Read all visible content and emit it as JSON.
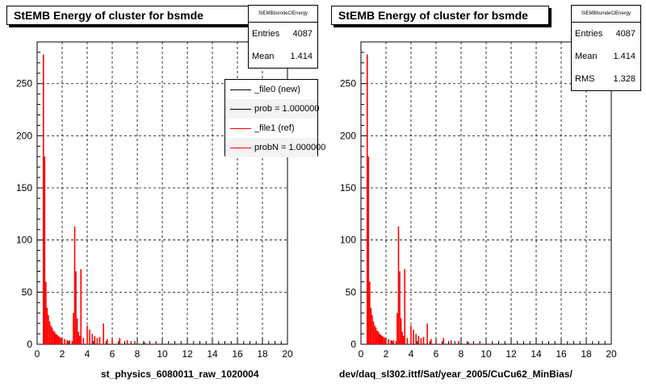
{
  "chart_data": [
    {
      "type": "bar",
      "title": "StEMB Energy of cluster for bsmde",
      "xlabel": "st_physics_6080011_raw_1020004",
      "ylabel": "",
      "xlim": [
        0,
        20
      ],
      "ylim": [
        0,
        290
      ],
      "x_ticks": [
        "0",
        "2",
        "4",
        "6",
        "8",
        "10",
        "12",
        "14",
        "16",
        "18",
        "20"
      ],
      "y_ticks": [
        "0",
        "50",
        "100",
        "150",
        "200",
        "250"
      ],
      "grid": true,
      "stats": {
        "name": "StEMBbsmdeClEnergy",
        "entries_label": "Entries",
        "entries": "4087",
        "mean_label": "Mean",
        "mean": "1.414"
      },
      "legend": {
        "placement": "top-right",
        "entries": [
          {
            "label": "_file0 (new)",
            "color": "#000000"
          },
          {
            "label": "prob = 1.000000",
            "color": "#000000"
          },
          {
            "label": "_file1 (ref)",
            "color": "#ff0000"
          },
          {
            "label": "probN = 1.000000",
            "color": "#ff0000"
          }
        ]
      },
      "series": [
        {
          "color": "#ff0000",
          "x": [
            0.5,
            0.6,
            0.7,
            0.8,
            0.9,
            1.0,
            1.1,
            1.2,
            1.3,
            1.4,
            1.5,
            1.6,
            1.7,
            1.8,
            1.9,
            2.0,
            2.2,
            2.4,
            2.6,
            2.8,
            2.9,
            3.0,
            3.1,
            3.2,
            3.3,
            3.4,
            3.5,
            3.7,
            4.0,
            4.2,
            4.4,
            4.6,
            4.8,
            5.0,
            5.3,
            5.6,
            6.0,
            6.6,
            7.2,
            7.8,
            8.6,
            9.5,
            10.5
          ],
          "values": [
            278,
            180,
            60,
            35,
            28,
            22,
            18,
            16,
            13,
            12,
            10,
            9,
            8,
            7,
            6,
            6,
            5,
            4,
            4,
            3,
            30,
            113,
            70,
            25,
            12,
            8,
            72,
            6,
            18,
            14,
            10,
            8,
            6,
            7,
            20,
            5,
            4,
            6,
            4,
            3,
            2,
            2,
            1
          ]
        }
      ]
    },
    {
      "type": "bar",
      "title": "StEMB Energy of cluster for bsmde",
      "xlabel": "dev/daq_sl302.ittf/Sat/year_2005/CuCu62_MinBias/",
      "ylabel": "",
      "xlim": [
        0,
        20
      ],
      "ylim": [
        0,
        290
      ],
      "x_ticks": [
        "0",
        "2",
        "4",
        "6",
        "8",
        "10",
        "12",
        "14",
        "16",
        "18",
        "20"
      ],
      "y_ticks": [
        "0",
        "50",
        "100",
        "150",
        "200",
        "250"
      ],
      "grid": true,
      "stats": {
        "name": "StEMBbsmdeClEnergy",
        "entries_label": "Entries",
        "entries": "4087",
        "mean_label": "Mean",
        "mean": "1.414",
        "rms_label": "RMS",
        "rms": "1.328"
      },
      "series": [
        {
          "color": "#ff0000",
          "x": [
            0.5,
            0.6,
            0.7,
            0.8,
            0.9,
            1.0,
            1.1,
            1.2,
            1.3,
            1.4,
            1.5,
            1.6,
            1.7,
            1.8,
            1.9,
            2.0,
            2.2,
            2.4,
            2.6,
            2.8,
            2.9,
            3.0,
            3.1,
            3.2,
            3.3,
            3.4,
            3.5,
            3.7,
            4.0,
            4.2,
            4.4,
            4.6,
            4.8,
            5.0,
            5.3,
            5.6,
            6.0,
            6.6,
            7.2,
            7.8,
            8.6,
            9.5,
            10.5
          ],
          "values": [
            278,
            180,
            60,
            35,
            28,
            22,
            18,
            16,
            13,
            12,
            10,
            9,
            8,
            7,
            6,
            6,
            5,
            4,
            4,
            3,
            30,
            113,
            70,
            25,
            12,
            8,
            72,
            6,
            18,
            14,
            10,
            8,
            6,
            7,
            20,
            5,
            4,
            6,
            4,
            3,
            2,
            2,
            1
          ]
        }
      ]
    }
  ]
}
